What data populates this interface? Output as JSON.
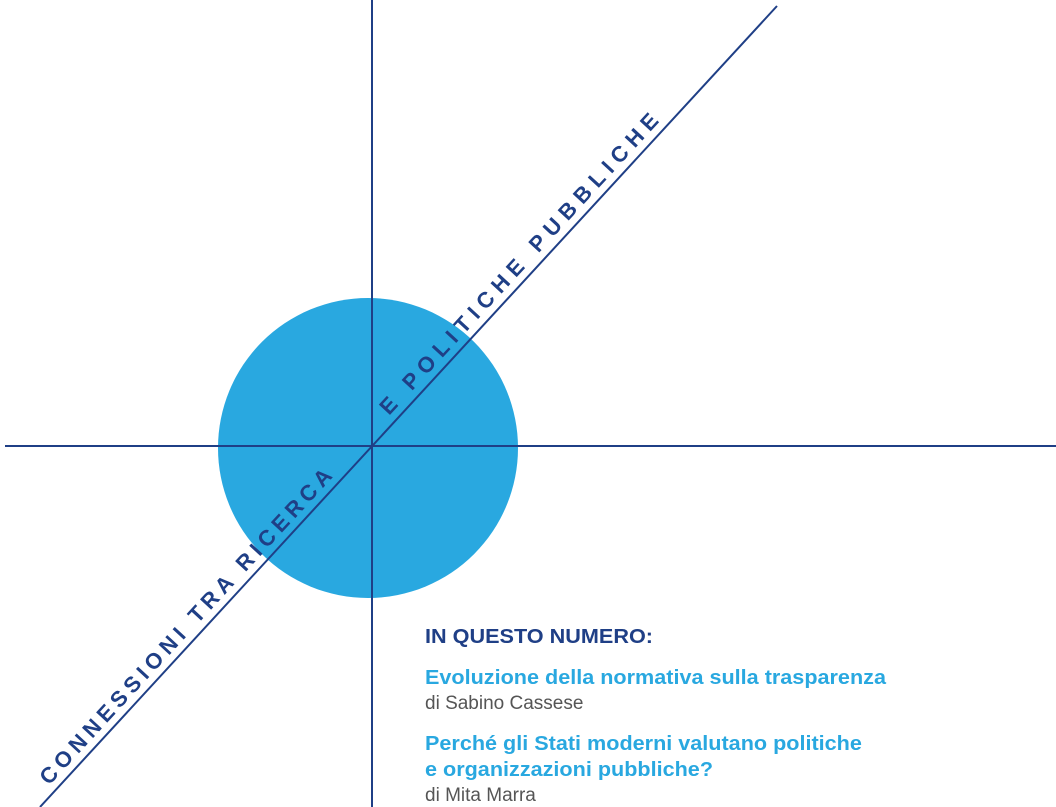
{
  "cover": {
    "diagonal_lower": "CONNESSIONI TRA RICERCA",
    "diagonal_upper": "E POLITICHE PUBBLICHE",
    "contents": {
      "heading": "IN QUESTO NUMERO:",
      "items": [
        {
          "title_lines": [
            "Evoluzione della normativa sulla trasparenza"
          ],
          "author": "di Sabino Cassese"
        },
        {
          "title_lines": [
            "Perché gli Stati moderni valutano politiche",
            "e organizzazioni pubbliche?"
          ],
          "author": "di Mita Marra"
        }
      ]
    }
  }
}
